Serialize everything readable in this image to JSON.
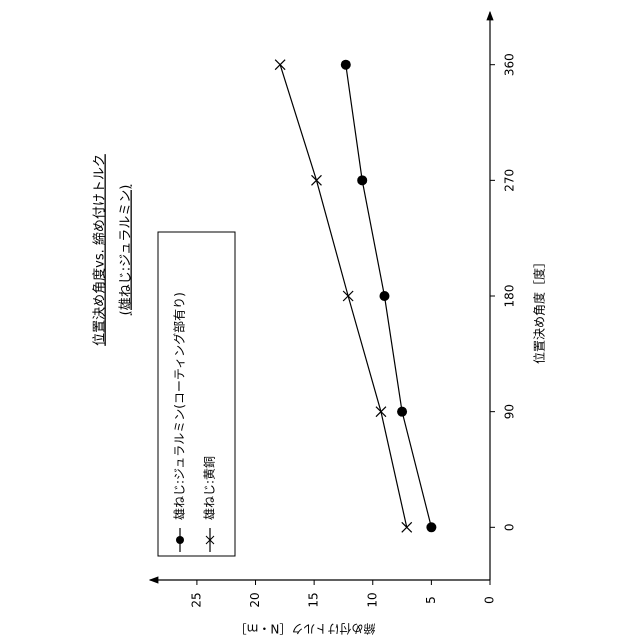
{
  "chart_data": {
    "type": "line",
    "title": "位置決め角度vs. 締め付けトルク",
    "subtitle": "(雄ねじ:ジュラルミン)",
    "x_label": "位置決め角度［度］",
    "y_label": "締め付けトルク［N・m］",
    "x": [
      0,
      90,
      180,
      270,
      360
    ],
    "xlim": [
      -41,
      401
    ],
    "xticks": [
      0,
      90,
      180,
      270,
      360
    ],
    "ylim": [
      0,
      29
    ],
    "yticks": [
      0,
      5,
      10,
      15,
      20,
      25
    ],
    "series": [
      {
        "name": "雄ねじ:ジュラルミン(コーティング部有り)",
        "color": "#000000",
        "marker": "circle",
        "values": [
          5.0,
          7.5,
          9.0,
          10.9,
          12.3
        ]
      },
      {
        "name": "雄ねじ:黄銅",
        "color": "#000000",
        "marker": "x",
        "values": [
          7.1,
          9.3,
          12.1,
          14.8,
          17.9
        ]
      }
    ]
  }
}
